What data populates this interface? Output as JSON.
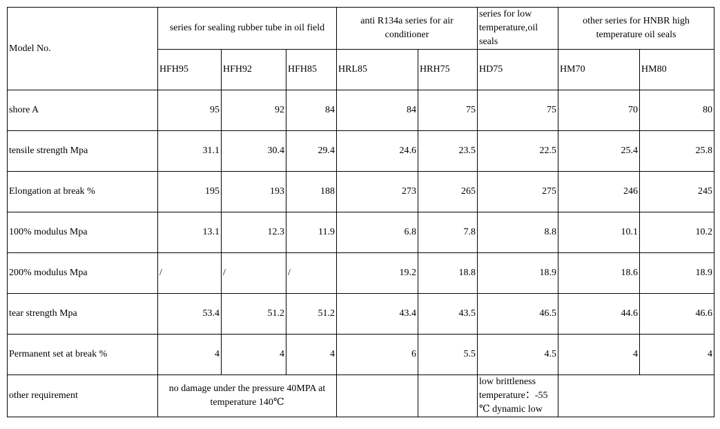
{
  "header": {
    "model_label": "Model No.",
    "groups": [
      "series for sealing rubber tube in oil field",
      "anti R134a series for air conditioner",
      "series for low temperature,oil seals",
      "other series for HNBR high temperature oil seals"
    ],
    "models": [
      "HFH95",
      "HFH92",
      "HFH85",
      "HRL85",
      "HRH75",
      "HD75",
      "HM70",
      "HM80"
    ]
  },
  "rows": [
    {
      "label": "shore A",
      "values": [
        "95",
        "92",
        "84",
        "84",
        "75",
        "75",
        "70",
        "80"
      ]
    },
    {
      "label": "tensile strength Mpa",
      "values": [
        "31.1",
        "30.4",
        "29.4",
        "24.6",
        "23.5",
        "22.5",
        "25.4",
        "25.8"
      ]
    },
    {
      "label": "Elongation at break %",
      "values": [
        "195",
        "193",
        "188",
        "273",
        "265",
        "275",
        "246",
        "245"
      ]
    },
    {
      "label": "100% modulus Mpa",
      "values": [
        "13.1",
        "12.3",
        "11.9",
        "6.8",
        "7.8",
        "8.8",
        "10.1",
        "10.2"
      ]
    },
    {
      "label": "200% modulus Mpa",
      "values": [
        "/",
        "/",
        "/",
        "19.2",
        "18.8",
        "18.9",
        "18.6",
        "18.9"
      ]
    },
    {
      "label": "tear strength Mpa",
      "values": [
        "53.4",
        "51.2",
        "51.2",
        "43.4",
        "43.5",
        "46.5",
        "44.6",
        "46.6"
      ]
    },
    {
      "label": "Permanent set at break %",
      "values": [
        "4",
        "4",
        "4",
        "6",
        "5.5",
        "4.5",
        "4",
        "4"
      ]
    }
  ],
  "other_requirement": {
    "label": "other requirement",
    "oil_field": "no damage under the pressure 40MPA at temperature 140℃",
    "low_temp": "low brittleness temperature：-55 ℃ dynamic low"
  }
}
